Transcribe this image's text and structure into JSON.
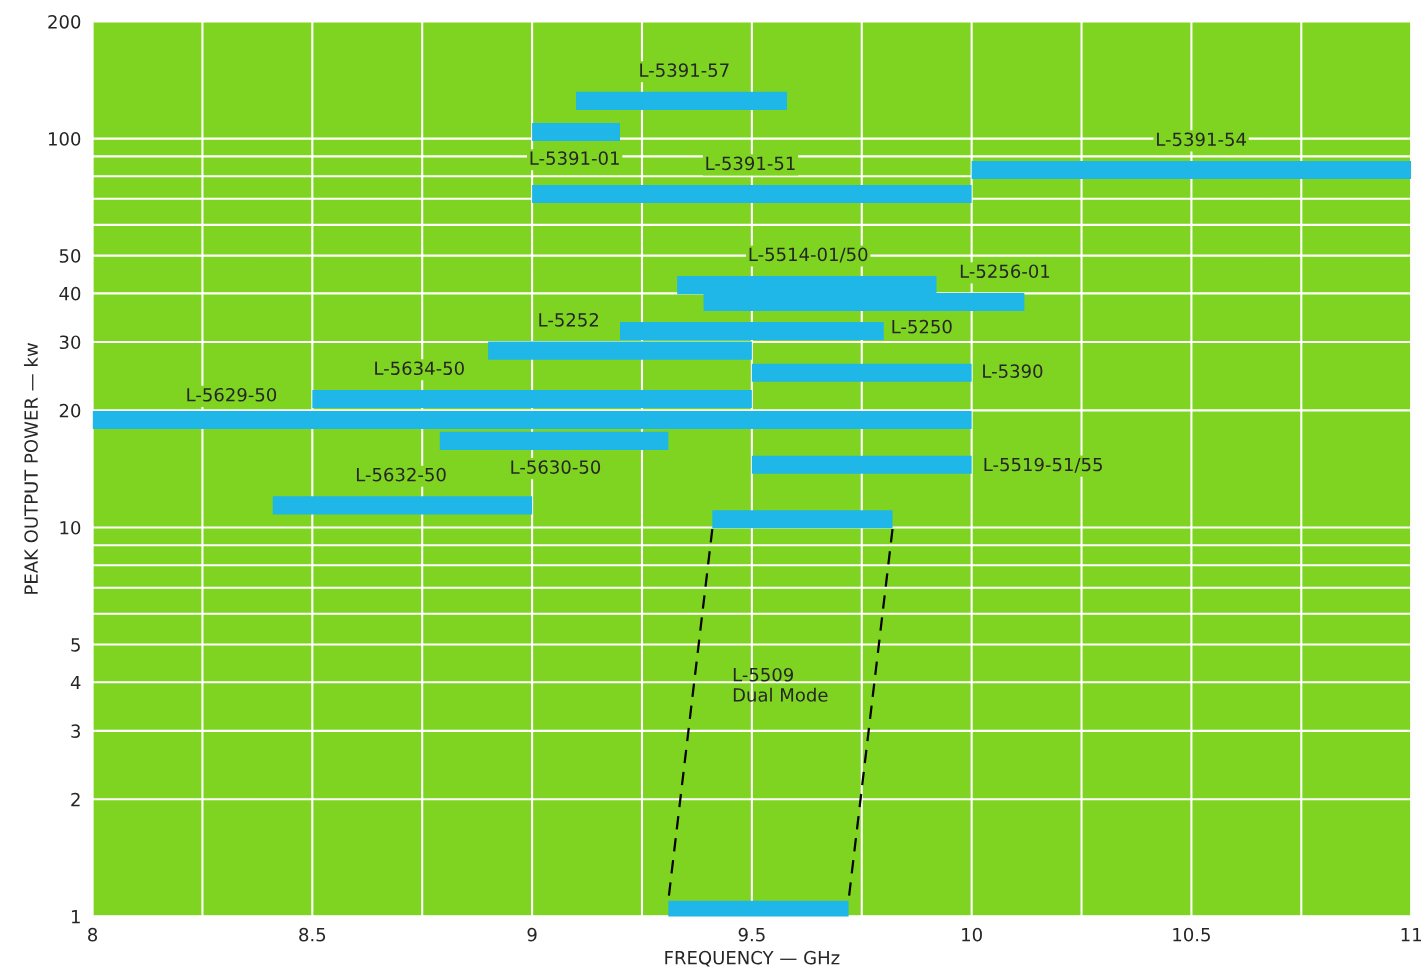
{
  "chart_data": {
    "type": "line",
    "xlabel": "FREQUENCY — GHz",
    "ylabel": "PEAK OUTPUT POWER — kw",
    "log": "y",
    "grid": true,
    "line_style": "solid",
    "marker": "none",
    "xlim": [
      8,
      11
    ],
    "ylim": [
      1,
      200
    ],
    "xticks": [
      8,
      {
        "value": 8.25,
        "label": null
      },
      8.5,
      {
        "value": 8.75,
        "label": null
      },
      9,
      {
        "value": 9.25,
        "label": null
      },
      9.5,
      {
        "value": 9.75,
        "label": null
      },
      10,
      {
        "value": 10.25,
        "label": null
      },
      10.5,
      {
        "value": 10.75,
        "label": null
      },
      11
    ],
    "yticks": [
      1,
      2,
      3,
      4,
      5,
      {
        "value": 6,
        "label": null
      },
      {
        "value": 7,
        "label": null
      },
      {
        "value": 8,
        "label": null
      },
      {
        "value": 9,
        "label": null
      },
      10,
      20,
      30,
      40,
      50,
      {
        "value": 60,
        "label": null
      },
      {
        "value": 70,
        "label": null
      },
      {
        "value": 80,
        "label": null
      },
      {
        "value": 90,
        "label": null
      },
      100,
      200
    ],
    "series": [
      {
        "name": "L-5391-57",
        "x": [
          9.1,
          9.58
        ],
        "values": [
          125,
          125
        ],
        "color": "#1fb6e8"
      },
      {
        "name": "L-5391-01",
        "x": [
          9.0,
          9.2
        ],
        "values": [
          104,
          104
        ],
        "color": "#1fb6e8"
      },
      {
        "name": "L-5391-54",
        "x": [
          10.0,
          11.0
        ],
        "values": [
          83,
          83
        ],
        "color": "#1fb6e8"
      },
      {
        "name": "L-5391-51",
        "x": [
          9.0,
          10.0
        ],
        "values": [
          72,
          72
        ],
        "color": "#1fb6e8"
      },
      {
        "name": "L-5514-01/50",
        "x": [
          9.33,
          9.92
        ],
        "values": [
          42,
          42
        ],
        "color": "#1fb6e8"
      },
      {
        "name": "L-5256-01",
        "x": [
          9.39,
          10.12
        ],
        "values": [
          38,
          38
        ],
        "color": "#1fb6e8"
      },
      {
        "name": "L-5250",
        "x": [
          9.2,
          9.8
        ],
        "values": [
          32,
          32
        ],
        "color": "#1fb6e8"
      },
      {
        "name": "L-5252",
        "x": [
          8.9,
          9.5
        ],
        "values": [
          28.5,
          28.5
        ],
        "color": "#1fb6e8"
      },
      {
        "name": "L-5390",
        "x": [
          9.5,
          10.0
        ],
        "values": [
          25,
          25
        ],
        "color": "#1fb6e8"
      },
      {
        "name": "L-5634-50",
        "x": [
          8.5,
          9.5
        ],
        "values": [
          21.4,
          21.4
        ],
        "color": "#1fb6e8"
      },
      {
        "name": "L-5629-50",
        "x": [
          8.0,
          10.0
        ],
        "values": [
          18.9,
          18.9
        ],
        "color": "#1fb6e8"
      },
      {
        "name": "L-5630-50",
        "x": [
          8.79,
          9.31
        ],
        "values": [
          16.7,
          16.7
        ],
        "color": "#1fb6e8"
      },
      {
        "name": "L-5519-51/55",
        "x": [
          9.5,
          10.0
        ],
        "values": [
          14.5,
          14.5
        ],
        "color": "#1fb6e8"
      },
      {
        "name": "L-5632-50",
        "x": [
          8.41,
          9.0
        ],
        "values": [
          11.4,
          11.4
        ],
        "color": "#1fb6e8"
      },
      {
        "x": [
          9.41,
          9.82
        ],
        "values": [
          10.5,
          10.5
        ],
        "color": "#1fb6e8"
      },
      {
        "x": [
          9.31,
          9.72
        ],
        "values": [
          1.04,
          1.04
        ],
        "color": "#1fb6e8"
      },
      {
        "x": [
          9.41,
          9.31
        ],
        "values": [
          9.9,
          1.1
        ],
        "color": "#000000",
        "line_style": "dashed"
      },
      {
        "x": [
          9.82,
          9.72
        ],
        "values": [
          9.9,
          1.1
        ],
        "color": "#000000",
        "line_style": "dashed"
      }
    ],
    "annotations": [
      "L-5509\nDual Mode"
    ]
  }
}
